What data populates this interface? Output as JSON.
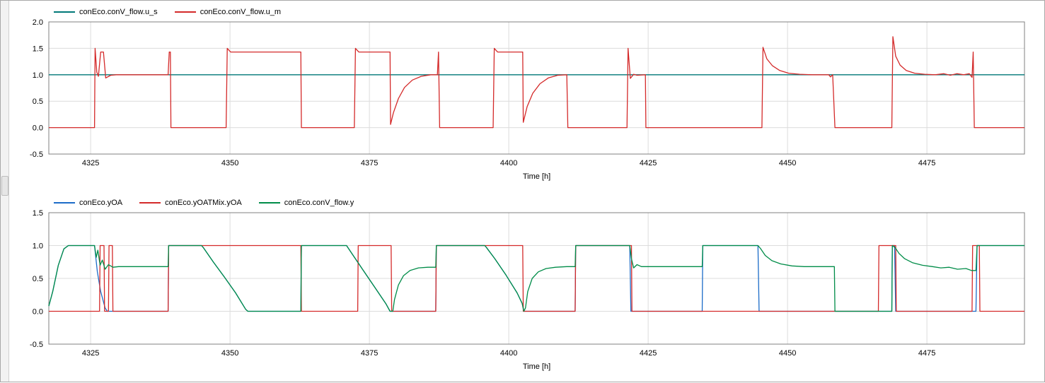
{
  "chart_data": [
    {
      "type": "line",
      "title": "",
      "xlabel": "Time [h]",
      "ylabel": "",
      "xlim": [
        4317.5,
        4492.5
      ],
      "ylim": [
        -0.5,
        2.0
      ],
      "x_ticks": [
        4325,
        4350,
        4375,
        4400,
        4425,
        4450,
        4475
      ],
      "x_tick_labels": [
        "4325",
        "4350",
        "4375",
        "4400",
        "4425",
        "4450",
        "4475"
      ],
      "y_ticks": [
        2.0,
        1.5,
        1.0,
        0.5,
        0.0,
        -0.5
      ],
      "y_tick_labels": [
        "2.0",
        "1.5",
        "1.0",
        "0.5",
        "0.0",
        "-0.5"
      ],
      "grid": true,
      "grid_color": "#dcdcdc",
      "frame_color": "#808080",
      "legend_position": "top-left",
      "series": [
        {
          "name": "conEco.conV_flow.u_s",
          "color": "#007878",
          "points": [
            [
              4317.5,
              1
            ],
            [
              4492.5,
              1
            ]
          ]
        },
        {
          "name": "conEco.conV_flow.u_m",
          "color": "#d42a2a",
          "points": [
            [
              4317.5,
              0
            ],
            [
              4325.7,
              0
            ],
            [
              4325.8,
              1.5
            ],
            [
              4326.1,
              1.05
            ],
            [
              4326.4,
              0.97
            ],
            [
              4326.8,
              1.43
            ],
            [
              4327.3,
              1.43
            ],
            [
              4327.7,
              0.94
            ],
            [
              4328.6,
              0.99
            ],
            [
              4329.6,
              1.0
            ],
            [
              4338.9,
              1.0
            ],
            [
              4339.1,
              1.43
            ],
            [
              4339.3,
              1.43
            ],
            [
              4339.4,
              0
            ],
            [
              4349.3,
              0
            ],
            [
              4349.5,
              1.5
            ],
            [
              4350.1,
              1.43
            ],
            [
              4362.7,
              1.43
            ],
            [
              4362.8,
              0
            ],
            [
              4372.3,
              0
            ],
            [
              4372.5,
              1.5
            ],
            [
              4373.1,
              1.43
            ],
            [
              4378.7,
              1.43
            ],
            [
              4378.8,
              0.06
            ],
            [
              4379.3,
              0.28
            ],
            [
              4380.2,
              0.55
            ],
            [
              4381.3,
              0.76
            ],
            [
              4382.7,
              0.9
            ],
            [
              4384.3,
              0.97
            ],
            [
              4386.0,
              1.0
            ],
            [
              4387.2,
              1.0
            ],
            [
              4387.4,
              1.43
            ],
            [
              4387.6,
              0
            ],
            [
              4397.2,
              0
            ],
            [
              4397.4,
              1.5
            ],
            [
              4398.0,
              1.43
            ],
            [
              4402.5,
              1.43
            ],
            [
              4402.6,
              0.1
            ],
            [
              4403.3,
              0.4
            ],
            [
              4404.3,
              0.65
            ],
            [
              4405.6,
              0.83
            ],
            [
              4407.1,
              0.94
            ],
            [
              4408.8,
              0.99
            ],
            [
              4410.4,
              1.0
            ],
            [
              4410.6,
              0
            ],
            [
              4421.2,
              0
            ],
            [
              4421.4,
              1.5
            ],
            [
              4421.8,
              0.93
            ],
            [
              4422.4,
              1.01
            ],
            [
              4423.0,
              0.99
            ],
            [
              4424.5,
              1.0
            ],
            [
              4424.6,
              0
            ],
            [
              4445.4,
              0
            ],
            [
              4445.6,
              1.52
            ],
            [
              4446.3,
              1.3
            ],
            [
              4447.3,
              1.17
            ],
            [
              4448.6,
              1.08
            ],
            [
              4450.2,
              1.03
            ],
            [
              4452.2,
              1.01
            ],
            [
              4454.5,
              1.0
            ],
            [
              4457.4,
              1.0
            ],
            [
              4457.7,
              0.96
            ],
            [
              4458.1,
              1.0
            ],
            [
              4458.5,
              0
            ],
            [
              4468.7,
              0
            ],
            [
              4468.9,
              1.72
            ],
            [
              4469.4,
              1.35
            ],
            [
              4470.2,
              1.18
            ],
            [
              4471.3,
              1.08
            ],
            [
              4472.8,
              1.03
            ],
            [
              4474.6,
              1.01
            ],
            [
              4476.5,
              1.0
            ],
            [
              4478.0,
              1.02
            ],
            [
              4479.2,
              0.99
            ],
            [
              4480.4,
              1.02
            ],
            [
              4481.6,
              1.0
            ],
            [
              4482.6,
              1.02
            ],
            [
              4483.1,
              0.95
            ],
            [
              4483.3,
              1.43
            ],
            [
              4483.5,
              0
            ],
            [
              4492.5,
              0
            ]
          ]
        }
      ]
    },
    {
      "type": "line",
      "title": "",
      "xlabel": "Time [h]",
      "ylabel": "",
      "xlim": [
        4317.5,
        4492.5
      ],
      "ylim": [
        -0.5,
        1.5
      ],
      "x_ticks": [
        4325,
        4350,
        4375,
        4400,
        4425,
        4450,
        4475
      ],
      "x_tick_labels": [
        "4325",
        "4350",
        "4375",
        "4400",
        "4425",
        "4450",
        "4475"
      ],
      "y_ticks": [
        1.5,
        1.0,
        0.5,
        0.0,
        -0.5
      ],
      "y_tick_labels": [
        "1.5",
        "1.0",
        "0.5",
        "0.0",
        "-0.5"
      ],
      "grid": true,
      "grid_color": "#dcdcdc",
      "frame_color": "#808080",
      "legend_position": "top-left",
      "series": [
        {
          "name": "conEco.yOA",
          "color": "#1c6cc8",
          "points": [
            [
              4317.5,
              0.08
            ],
            [
              4318.2,
              0.3
            ],
            [
              4319.2,
              0.7
            ],
            [
              4320.2,
              0.95
            ],
            [
              4321.0,
              1.0
            ],
            [
              4325.7,
              1.0
            ],
            [
              4326.2,
              0.6
            ],
            [
              4326.8,
              0.3
            ],
            [
              4327.6,
              0.05
            ],
            [
              4328.0,
              0
            ],
            [
              4338.9,
              0
            ],
            [
              4339.0,
              1.0
            ],
            [
              4344.9,
              1.0
            ],
            [
              4345.2,
              0.97
            ],
            [
              4347.0,
              0.75
            ],
            [
              4349.0,
              0.52
            ],
            [
              4351.0,
              0.28
            ],
            [
              4352.8,
              0.03
            ],
            [
              4353.2,
              0
            ],
            [
              4362.7,
              0
            ],
            [
              4362.8,
              1.0
            ],
            [
              4370.9,
              1.0
            ],
            [
              4372.0,
              0.86
            ],
            [
              4374.0,
              0.61
            ],
            [
              4376.0,
              0.36
            ],
            [
              4378.0,
              0.11
            ],
            [
              4378.7,
              0
            ],
            [
              4386.9,
              0
            ],
            [
              4387.0,
              1.0
            ],
            [
              4395.7,
              1.0
            ],
            [
              4396.0,
              0.97
            ],
            [
              4397.5,
              0.8
            ],
            [
              4399.5,
              0.55
            ],
            [
              4401.5,
              0.28
            ],
            [
              4402.4,
              0.12
            ],
            [
              4402.7,
              0
            ],
            [
              4411.9,
              0
            ],
            [
              4412.0,
              1.0
            ],
            [
              4421.7,
              1.0
            ],
            [
              4421.9,
              0
            ],
            [
              4434.7,
              0
            ],
            [
              4434.8,
              1.0
            ],
            [
              4444.7,
              1.0
            ],
            [
              4444.9,
              0
            ],
            [
              4468.7,
              0
            ],
            [
              4468.8,
              1.0
            ],
            [
              4469.2,
              1.0
            ],
            [
              4469.4,
              0
            ],
            [
              4483.8,
              0
            ],
            [
              4484.0,
              1.0
            ],
            [
              4492.5,
              1.0
            ]
          ]
        },
        {
          "name": "conEco.yOATMix.yOA",
          "color": "#d42a2a",
          "points": [
            [
              4317.5,
              0
            ],
            [
              4326.6,
              0
            ],
            [
              4326.7,
              1.0
            ],
            [
              4327.4,
              1.0
            ],
            [
              4327.5,
              0
            ],
            [
              4328.2,
              0
            ],
            [
              4328.3,
              1.0
            ],
            [
              4328.9,
              1.0
            ],
            [
              4329.0,
              0
            ],
            [
              4338.9,
              0
            ],
            [
              4339.0,
              1.0
            ],
            [
              4362.7,
              1.0
            ],
            [
              4362.8,
              0
            ],
            [
              4372.9,
              0
            ],
            [
              4373.0,
              1.0
            ],
            [
              4378.9,
              1.0
            ],
            [
              4379.0,
              0
            ],
            [
              4386.9,
              0
            ],
            [
              4387.0,
              1.0
            ],
            [
              4402.5,
              1.0
            ],
            [
              4402.6,
              0
            ],
            [
              4411.9,
              0
            ],
            [
              4412.0,
              1.0
            ],
            [
              4422.0,
              1.0
            ],
            [
              4422.1,
              0
            ],
            [
              4466.3,
              0
            ],
            [
              4466.4,
              1.0
            ],
            [
              4469.4,
              1.0
            ],
            [
              4469.5,
              0
            ],
            [
              4483.1,
              0
            ],
            [
              4483.2,
              1.0
            ],
            [
              4484.4,
              1.0
            ],
            [
              4484.5,
              0
            ],
            [
              4492.5,
              0
            ]
          ]
        },
        {
          "name": "conEco.conV_flow.y",
          "color": "#008c48",
          "points": [
            [
              4317.5,
              0.08
            ],
            [
              4318.2,
              0.3
            ],
            [
              4319.2,
              0.7
            ],
            [
              4320.2,
              0.95
            ],
            [
              4321.0,
              1.0
            ],
            [
              4325.7,
              1.0
            ],
            [
              4326.0,
              0.82
            ],
            [
              4326.3,
              0.93
            ],
            [
              4326.7,
              0.7
            ],
            [
              4327.1,
              0.78
            ],
            [
              4327.6,
              0.64
            ],
            [
              4328.2,
              0.71
            ],
            [
              4329.0,
              0.67
            ],
            [
              4330.0,
              0.68
            ],
            [
              4338.9,
              0.68
            ],
            [
              4339.0,
              1.0
            ],
            [
              4344.9,
              1.0
            ],
            [
              4345.2,
              0.97
            ],
            [
              4347.0,
              0.75
            ],
            [
              4349.0,
              0.52
            ],
            [
              4351.0,
              0.28
            ],
            [
              4352.8,
              0.03
            ],
            [
              4353.2,
              0
            ],
            [
              4362.7,
              0
            ],
            [
              4362.8,
              1.0
            ],
            [
              4370.9,
              1.0
            ],
            [
              4372.0,
              0.86
            ],
            [
              4374.0,
              0.61
            ],
            [
              4376.0,
              0.36
            ],
            [
              4378.0,
              0.11
            ],
            [
              4378.7,
              0
            ],
            [
              4379.2,
              0
            ],
            [
              4379.5,
              0.18
            ],
            [
              4380.2,
              0.4
            ],
            [
              4381.1,
              0.54
            ],
            [
              4382.3,
              0.62
            ],
            [
              4383.8,
              0.66
            ],
            [
              4385.5,
              0.67
            ],
            [
              4386.9,
              0.67
            ],
            [
              4387.0,
              1.0
            ],
            [
              4395.7,
              1.0
            ],
            [
              4396.0,
              0.97
            ],
            [
              4397.5,
              0.8
            ],
            [
              4399.5,
              0.55
            ],
            [
              4401.5,
              0.28
            ],
            [
              4402.4,
              0.12
            ],
            [
              4402.7,
              0
            ],
            [
              4403.0,
              0.05
            ],
            [
              4403.4,
              0.3
            ],
            [
              4404.2,
              0.5
            ],
            [
              4405.3,
              0.6
            ],
            [
              4406.7,
              0.65
            ],
            [
              4408.4,
              0.67
            ],
            [
              4410.4,
              0.68
            ],
            [
              4411.9,
              0.68
            ],
            [
              4412.0,
              1.0
            ],
            [
              4421.7,
              1.0
            ],
            [
              4422.0,
              0.8
            ],
            [
              4422.4,
              0.66
            ],
            [
              4423.0,
              0.71
            ],
            [
              4423.8,
              0.68
            ],
            [
              4434.7,
              0.68
            ],
            [
              4434.8,
              1.0
            ],
            [
              4444.7,
              1.0
            ],
            [
              4445.2,
              0.95
            ],
            [
              4446.0,
              0.85
            ],
            [
              4447.2,
              0.77
            ],
            [
              4448.8,
              0.72
            ],
            [
              4450.8,
              0.69
            ],
            [
              4453.0,
              0.68
            ],
            [
              4458.4,
              0.68
            ],
            [
              4458.5,
              0
            ],
            [
              4468.7,
              0
            ],
            [
              4468.8,
              1.0
            ],
            [
              4469.3,
              0.97
            ],
            [
              4470.0,
              0.88
            ],
            [
              4471.0,
              0.8
            ],
            [
              4472.4,
              0.74
            ],
            [
              4474.2,
              0.7
            ],
            [
              4476.0,
              0.68
            ],
            [
              4477.5,
              0.66
            ],
            [
              4479.0,
              0.67
            ],
            [
              4480.5,
              0.64
            ],
            [
              4482.0,
              0.65
            ],
            [
              4483.0,
              0.62
            ],
            [
              4483.8,
              0.62
            ],
            [
              4484.0,
              1.0
            ],
            [
              4492.5,
              1.0
            ]
          ]
        }
      ]
    }
  ]
}
